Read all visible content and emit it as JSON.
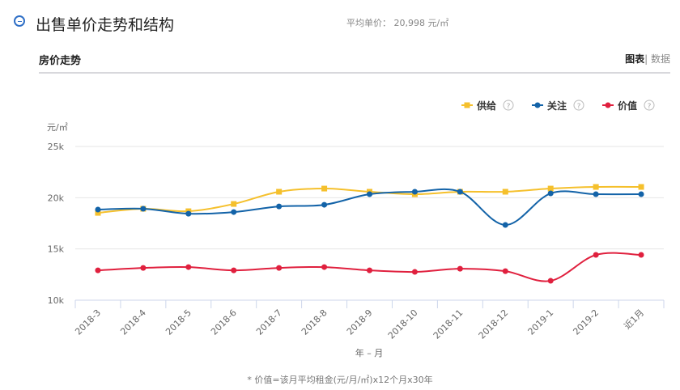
{
  "header": {
    "title": "出售单价走势和结构",
    "avg_label": "平均单价：",
    "avg_value": "20,998 元/㎡"
  },
  "section": {
    "title": "房价走势",
    "toggle_chart": "图表",
    "toggle_sep": "|",
    "toggle_data": "数据"
  },
  "note": "* 价值=该月平均租金(元/月/㎡)x12个月x30年",
  "chart_data": {
    "type": "line",
    "ylabel": "元/㎡",
    "xlabel": "年 – 月",
    "ylim": [
      10000,
      25000
    ],
    "yticks": [
      "10k",
      "15k",
      "20k",
      "25k"
    ],
    "grid": true,
    "legend": "top-right",
    "categories": [
      "2018-3",
      "2018-4",
      "2018-5",
      "2018-6",
      "2018-7",
      "2018-8",
      "2018-9",
      "2018-10",
      "2018-11",
      "2018-12",
      "2019-1",
      "2019-2",
      "近1月"
    ],
    "series": [
      {
        "name": "供给",
        "color": "#f5c02c",
        "marker": "square",
        "values": [
          18520,
          18920,
          18680,
          19390,
          20580,
          20890,
          20580,
          20340,
          20580,
          20580,
          20890,
          21050,
          21050
        ]
      },
      {
        "name": "关注",
        "color": "#1363a8",
        "marker": "circle",
        "values": [
          18840,
          18920,
          18440,
          18600,
          19150,
          19310,
          20340,
          20580,
          20580,
          17340,
          20420,
          20340,
          20340
        ]
      },
      {
        "name": "价值",
        "color": "#e0203e",
        "marker": "circle",
        "values": [
          12910,
          13150,
          13230,
          12910,
          13150,
          13230,
          12910,
          12760,
          13070,
          12830,
          11890,
          14420,
          14420
        ]
      }
    ]
  }
}
